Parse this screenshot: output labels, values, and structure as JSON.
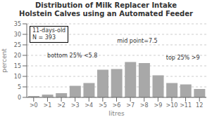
{
  "chart_data": {
    "type": "bar",
    "title": "Distribution of Milk Replacer Intake",
    "subtitle": "Holstein Calves using an Automated Feeder",
    "categories": [
      ">0",
      ">1",
      ">2",
      ">3",
      ">4",
      ">5",
      ">6",
      ">7",
      ">8",
      ">9",
      ">10",
      ">11",
      "12"
    ],
    "values": [
      0.7,
      1.3,
      2.0,
      5.5,
      6.8,
      13.2,
      13.5,
      16.8,
      16.3,
      10.5,
      6.8,
      6.2,
      4.0
    ],
    "color": "#a8a8a8",
    "xlabel": "litres",
    "ylabel": "percent",
    "ylim": [
      0,
      35
    ],
    "yticks": [
      0,
      5,
      10,
      15,
      20,
      25,
      30,
      35
    ],
    "grid": true,
    "annotations": [
      "11-days-old\nN = 393",
      "bottom 25% <5.8",
      "mid point=7.5",
      "top 25% >9"
    ]
  }
}
